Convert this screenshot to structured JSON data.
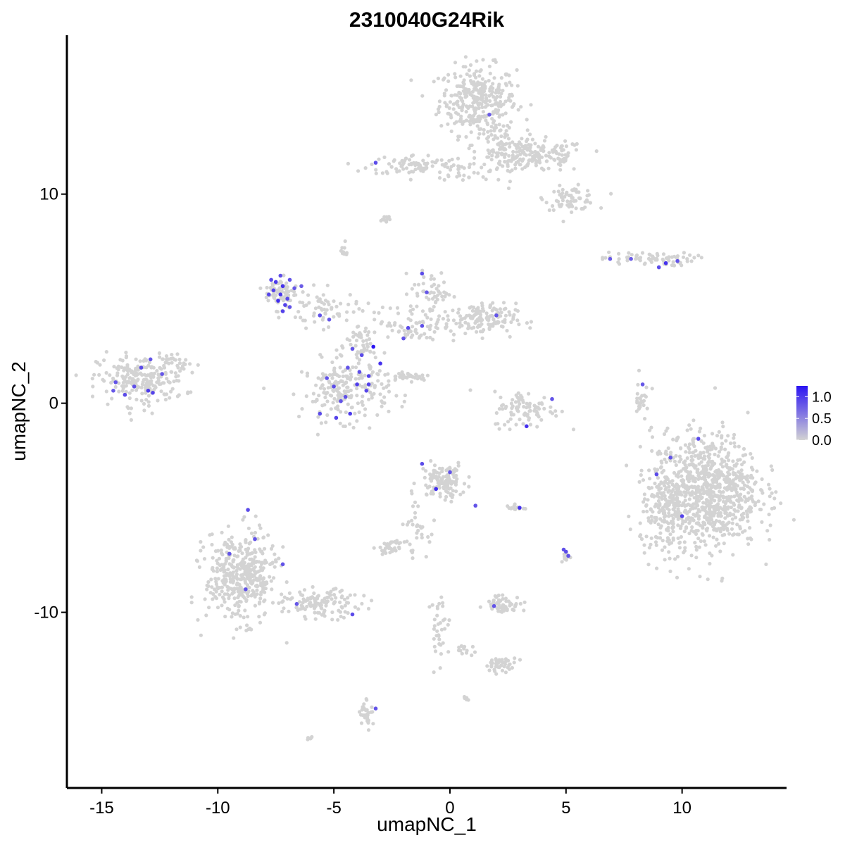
{
  "chart_data": {
    "type": "scatter",
    "title": "2310040G24Rik",
    "xlabel": "umapNC_1",
    "ylabel": "umapNC_2",
    "xlim": [
      -16.5,
      14.5
    ],
    "ylim": [
      -18.4,
      17.6
    ],
    "xticks": [
      -15,
      -10,
      -5,
      0,
      5,
      10
    ],
    "xtick_labels": [
      "-15",
      "-10",
      "-5",
      "0",
      "5",
      "10"
    ],
    "yticks": [
      -10,
      0,
      10
    ],
    "ytick_labels": [
      "-10",
      "0",
      "10"
    ],
    "grid": false,
    "legend_position": "right",
    "colorbar": {
      "ticks": [
        0.0,
        0.5,
        1.0
      ],
      "tick_labels": [
        "0.0",
        "0.5",
        "1.0"
      ],
      "range": [
        0.0,
        1.25
      ],
      "low_color": "#d3d3d3",
      "high_color": "#2b14f2"
    },
    "background_point_color": "#d3d3d3",
    "regions": [
      {
        "name": "top-right-large",
        "cx": 1.2,
        "cy": 14.5,
        "rx": 1.5,
        "ry": 1.5,
        "n": 320
      },
      {
        "name": "top-right-arm",
        "cx": 3.8,
        "cy": 11.8,
        "rx": 1.9,
        "ry": 0.7,
        "n": 150
      },
      {
        "name": "top-right-tail",
        "cx": 5.2,
        "cy": 9.8,
        "rx": 1.0,
        "ry": 0.5,
        "n": 70
      },
      {
        "name": "top-right-stem",
        "cx": 2.2,
        "cy": 12.0,
        "rx": 1.0,
        "ry": 1.4,
        "n": 90
      },
      {
        "name": "top-center-band",
        "cx": -1.5,
        "cy": 11.4,
        "rx": 1.8,
        "ry": 0.45,
        "n": 80
      },
      {
        "name": "top-link",
        "cx": 0.4,
        "cy": 11.1,
        "rx": 0.8,
        "ry": 0.4,
        "n": 25
      },
      {
        "name": "tiny-top",
        "cx": -2.8,
        "cy": 8.8,
        "rx": 0.3,
        "ry": 0.2,
        "n": 10
      },
      {
        "name": "tiny-top2",
        "cx": -4.6,
        "cy": 7.3,
        "rx": 0.25,
        "ry": 0.35,
        "n": 10
      },
      {
        "name": "right-streak",
        "cx": 8.5,
        "cy": 6.9,
        "rx": 1.8,
        "ry": 0.3,
        "n": 70
      },
      {
        "name": "left-blob",
        "cx": -13.3,
        "cy": 1.1,
        "rx": 1.7,
        "ry": 1.1,
        "n": 220
      },
      {
        "name": "left-blob-tail",
        "cx": -11.6,
        "cy": 1.8,
        "rx": 0.8,
        "ry": 0.4,
        "n": 25
      },
      {
        "name": "center-lower-blob",
        "cx": -4.5,
        "cy": 0.6,
        "rx": 1.7,
        "ry": 1.3,
        "n": 200
      },
      {
        "name": "center-stalk",
        "cx": -3.8,
        "cy": 2.7,
        "rx": 0.6,
        "ry": 1.3,
        "n": 60
      },
      {
        "name": "center-left-arm",
        "cx": -5.5,
        "cy": 4.5,
        "rx": 1.4,
        "ry": 0.8,
        "n": 60
      },
      {
        "name": "center-right-arm",
        "cx": -1.5,
        "cy": 3.8,
        "rx": 1.6,
        "ry": 0.8,
        "n": 70
      },
      {
        "name": "upper-right-lobe",
        "cx": 1.3,
        "cy": 4.0,
        "rx": 1.4,
        "ry": 0.7,
        "n": 140
      },
      {
        "name": "upper-right-lobe2",
        "cx": -0.8,
        "cy": 5.3,
        "rx": 0.8,
        "ry": 0.9,
        "n": 50
      },
      {
        "name": "purple-cluster",
        "cx": -7.3,
        "cy": 5.3,
        "rx": 0.6,
        "ry": 0.7,
        "n": 70
      },
      {
        "name": "diag-streak",
        "cx": -1.8,
        "cy": 1.3,
        "rx": 0.9,
        "ry": 0.2,
        "n": 40
      },
      {
        "name": "arc-cluster",
        "cx": 3.3,
        "cy": -0.3,
        "rx": 1.3,
        "ry": 0.8,
        "n": 90
      },
      {
        "name": "vertical-streak",
        "cx": 8.2,
        "cy": 0.2,
        "rx": 0.2,
        "ry": 1.0,
        "n": 25
      },
      {
        "name": "big-right-blob",
        "cx": 11.0,
        "cy": -4.2,
        "rx": 2.1,
        "ry": 2.5,
        "n": 900
      },
      {
        "name": "big-right-skirt",
        "cx": 9.3,
        "cy": -5.5,
        "rx": 1.0,
        "ry": 1.7,
        "n": 120
      },
      {
        "name": "mid-lower-blob",
        "cx": -0.3,
        "cy": -3.7,
        "rx": 0.9,
        "ry": 0.8,
        "n": 120
      },
      {
        "name": "mid-lower-arm",
        "cx": -1.5,
        "cy": -6.0,
        "rx": 0.5,
        "ry": 1.2,
        "n": 30
      },
      {
        "name": "mid-lower-piece",
        "cx": -2.5,
        "cy": -6.9,
        "rx": 0.5,
        "ry": 0.25,
        "n": 35
      },
      {
        "name": "small-right-bit",
        "cx": 2.8,
        "cy": -5.0,
        "rx": 0.4,
        "ry": 0.15,
        "n": 12
      },
      {
        "name": "small-purple-bit",
        "cx": 5.0,
        "cy": -7.3,
        "rx": 0.15,
        "ry": 0.3,
        "n": 15
      },
      {
        "name": "lower-left-blob",
        "cx": -9.0,
        "cy": -8.3,
        "rx": 1.4,
        "ry": 1.9,
        "n": 420
      },
      {
        "name": "lower-left-tail",
        "cx": -5.5,
        "cy": -9.6,
        "rx": 1.5,
        "ry": 0.6,
        "n": 120
      },
      {
        "name": "lower-mid-small",
        "cx": 2.3,
        "cy": -9.6,
        "rx": 0.7,
        "ry": 0.4,
        "n": 55
      },
      {
        "name": "lower-mid-trail",
        "cx": -0.4,
        "cy": -10.8,
        "rx": 0.4,
        "ry": 1.6,
        "n": 35
      },
      {
        "name": "lower-mid-blob2",
        "cx": 2.2,
        "cy": -12.5,
        "rx": 0.6,
        "ry": 0.3,
        "n": 40
      },
      {
        "name": "lower-mid-link",
        "cx": 0.7,
        "cy": -11.8,
        "rx": 0.6,
        "ry": 0.2,
        "n": 12
      },
      {
        "name": "bottom-small",
        "cx": -3.6,
        "cy": -14.8,
        "rx": 0.25,
        "ry": 0.6,
        "n": 30
      },
      {
        "name": "bottom-tiny",
        "cx": 0.7,
        "cy": -14.1,
        "rx": 0.15,
        "ry": 0.1,
        "n": 6
      },
      {
        "name": "bottom-tiny2",
        "cx": -6.0,
        "cy": -16.0,
        "rx": 0.15,
        "ry": 0.1,
        "n": 6
      }
    ],
    "highlighted_points": [
      {
        "x": -7.5,
        "y": 5.8,
        "value": 0.8
      },
      {
        "x": -7.2,
        "y": 5.6,
        "value": 0.9
      },
      {
        "x": -7.6,
        "y": 5.4,
        "value": 0.7
      },
      {
        "x": -7.3,
        "y": 5.2,
        "value": 0.85
      },
      {
        "x": -7.0,
        "y": 5.0,
        "value": 0.6
      },
      {
        "x": -7.4,
        "y": 4.9,
        "value": 0.95
      },
      {
        "x": -7.1,
        "y": 4.7,
        "value": 0.7
      },
      {
        "x": -6.9,
        "y": 4.6,
        "value": 0.5
      },
      {
        "x": -7.7,
        "y": 5.9,
        "value": 0.6
      },
      {
        "x": -7.3,
        "y": 6.1,
        "value": 0.55
      },
      {
        "x": -6.7,
        "y": 5.5,
        "value": 0.45
      },
      {
        "x": -6.4,
        "y": 5.6,
        "value": 0.4
      },
      {
        "x": -7.8,
        "y": 5.2,
        "value": 0.65
      },
      {
        "x": -7.2,
        "y": 4.4,
        "value": 0.7
      },
      {
        "x": -6.9,
        "y": 5.9,
        "value": 0.5
      },
      {
        "x": -3.3,
        "y": 2.7,
        "value": 1.25
      },
      {
        "x": -3.5,
        "y": 1.3,
        "value": 0.7
      },
      {
        "x": -3.8,
        "y": 2.3,
        "value": 0.6
      },
      {
        "x": -4.2,
        "y": 2.6,
        "value": 0.5
      },
      {
        "x": -3.6,
        "y": 0.6,
        "value": 0.65
      },
      {
        "x": -4.0,
        "y": 0.9,
        "value": 0.75
      },
      {
        "x": -4.5,
        "y": 0.3,
        "value": 0.55
      },
      {
        "x": -5.0,
        "y": 0.8,
        "value": 0.6
      },
      {
        "x": -5.3,
        "y": 1.2,
        "value": 0.5
      },
      {
        "x": -4.3,
        "y": -0.5,
        "value": 0.8
      },
      {
        "x": -4.9,
        "y": -0.7,
        "value": 0.7
      },
      {
        "x": -3.9,
        "y": 1.5,
        "value": 0.55
      },
      {
        "x": -3.0,
        "y": 1.9,
        "value": 0.9
      },
      {
        "x": -4.4,
        "y": 1.7,
        "value": 0.5
      },
      {
        "x": -5.6,
        "y": -0.5,
        "value": 0.6
      },
      {
        "x": -3.5,
        "y": 0.9,
        "value": 0.7
      },
      {
        "x": -4.7,
        "y": 0.1,
        "value": 0.5
      },
      {
        "x": -5.6,
        "y": 4.2,
        "value": 0.5
      },
      {
        "x": -5.2,
        "y": 4.0,
        "value": 0.45
      },
      {
        "x": -1.8,
        "y": 3.6,
        "value": 0.6
      },
      {
        "x": -2.0,
        "y": 3.1,
        "value": 0.5
      },
      {
        "x": -1.2,
        "y": 3.7,
        "value": 0.55
      },
      {
        "x": -1.2,
        "y": 6.2,
        "value": 0.6
      },
      {
        "x": -1.0,
        "y": 5.3,
        "value": 0.45
      },
      {
        "x": 2.0,
        "y": 4.2,
        "value": 0.5
      },
      {
        "x": -13.3,
        "y": 1.7,
        "value": 0.6
      },
      {
        "x": -13.6,
        "y": 0.8,
        "value": 0.55
      },
      {
        "x": -12.8,
        "y": 0.5,
        "value": 0.7
      },
      {
        "x": -14.4,
        "y": 1.0,
        "value": 0.5
      },
      {
        "x": -12.4,
        "y": 1.4,
        "value": 0.45
      },
      {
        "x": -14.0,
        "y": 0.4,
        "value": 0.6
      },
      {
        "x": -12.9,
        "y": 2.1,
        "value": 0.5
      },
      {
        "x": -13.0,
        "y": 0.6,
        "value": 0.8
      },
      {
        "x": -14.5,
        "y": 0.6,
        "value": 0.45
      },
      {
        "x": 9.3,
        "y": 6.7,
        "value": 0.9
      },
      {
        "x": 9.0,
        "y": 6.5,
        "value": 0.6
      },
      {
        "x": 9.8,
        "y": 6.8,
        "value": 0.5
      },
      {
        "x": 7.8,
        "y": 6.9,
        "value": 0.4
      },
      {
        "x": 6.9,
        "y": 6.9,
        "value": 0.4
      },
      {
        "x": 3.3,
        "y": -1.1,
        "value": 0.9
      },
      {
        "x": 4.4,
        "y": 0.2,
        "value": 0.5
      },
      {
        "x": 8.3,
        "y": 0.9,
        "value": 0.45
      },
      {
        "x": -0.6,
        "y": -4.1,
        "value": 0.95
      },
      {
        "x": -1.2,
        "y": -2.9,
        "value": 0.6
      },
      {
        "x": 0.0,
        "y": -3.3,
        "value": 0.5
      },
      {
        "x": 1.1,
        "y": -4.9,
        "value": 0.5
      },
      {
        "x": 3.0,
        "y": -5.0,
        "value": 0.9
      },
      {
        "x": 5.0,
        "y": -7.1,
        "value": 0.6
      },
      {
        "x": 5.1,
        "y": -7.3,
        "value": 0.5
      },
      {
        "x": 4.9,
        "y": -7.0,
        "value": 0.55
      },
      {
        "x": 10.7,
        "y": -1.7,
        "value": 0.6
      },
      {
        "x": 9.5,
        "y": -2.6,
        "value": 0.5
      },
      {
        "x": 8.9,
        "y": -3.4,
        "value": 0.6
      },
      {
        "x": 10.0,
        "y": -5.4,
        "value": 0.7
      },
      {
        "x": -8.7,
        "y": -5.1,
        "value": 0.6
      },
      {
        "x": -8.4,
        "y": -6.5,
        "value": 0.5
      },
      {
        "x": -9.5,
        "y": -7.2,
        "value": 0.5
      },
      {
        "x": -8.8,
        "y": -8.9,
        "value": 0.5
      },
      {
        "x": -7.2,
        "y": -7.7,
        "value": 0.5
      },
      {
        "x": -4.2,
        "y": -10.1,
        "value": 0.6
      },
      {
        "x": -6.6,
        "y": -9.6,
        "value": 0.45
      },
      {
        "x": 1.9,
        "y": -9.7,
        "value": 0.5
      },
      {
        "x": -3.2,
        "y": -14.6,
        "value": 0.5
      },
      {
        "x": -3.2,
        "y": 11.5,
        "value": 0.6
      },
      {
        "x": 1.7,
        "y": 13.8,
        "value": 0.4
      }
    ]
  }
}
